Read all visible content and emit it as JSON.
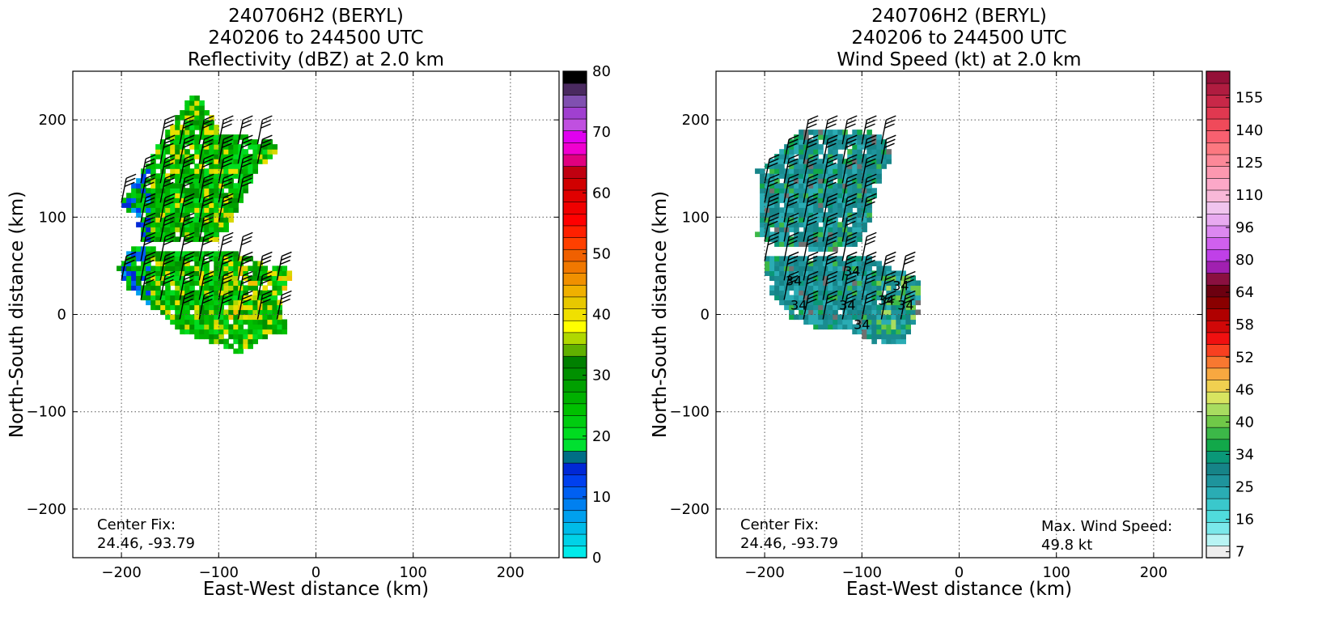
{
  "chart_data": [
    {
      "type": "heatmap",
      "title_lines": [
        "240706H2 (BERYL)",
        "240206 to 244500 UTC",
        "Reflectivity (dBZ) at 2.0 km"
      ],
      "xlabel": "East-West distance (km)",
      "ylabel": "North-South distance (km)",
      "xlim": [
        -250,
        250
      ],
      "ylim": [
        -250,
        250
      ],
      "xticks": [
        -200,
        -100,
        0,
        100,
        200
      ],
      "yticks": [
        -200,
        -100,
        0,
        100,
        200
      ],
      "grid": true,
      "annotation_lines": [
        "Center Fix:",
        "24.46, -93.79"
      ],
      "colorbar": {
        "range": [
          0,
          80
        ],
        "tick_labels": [
          "0",
          "10",
          "20",
          "30",
          "40",
          "50",
          "60",
          "70",
          "80"
        ],
        "colors": [
          "#00eaea",
          "#00d2e8",
          "#00bbe8",
          "#00a0ee",
          "#0080f0",
          "#0060f2",
          "#0040ee",
          "#0028d6",
          "#006e86",
          "#00e030",
          "#00dc20",
          "#00cc10",
          "#00c000",
          "#00b000",
          "#00a000",
          "#009000",
          "#008000",
          "#60b000",
          "#b0d800",
          "#ffff00",
          "#f0e000",
          "#e8c800",
          "#f0b000",
          "#f09000",
          "#f07800",
          "#f06000",
          "#ff4000",
          "#ff2000",
          "#ff0000",
          "#f00000",
          "#e00000",
          "#d00000",
          "#c00010",
          "#e00080",
          "#f000d0",
          "#e000f0",
          "#c050e0",
          "#a040d0",
          "#8050b0",
          "#4a2a60",
          "#000000"
        ]
      },
      "vector_symbol": "wind barbs"
    },
    {
      "type": "heatmap",
      "title_lines": [
        "240706H2 (BERYL)",
        "240206 to 244500 UTC",
        "Wind Speed (kt) at 2.0 km"
      ],
      "xlabel": "East-West distance (km)",
      "ylabel": "North-South distance (km)",
      "xlim": [
        -250,
        250
      ],
      "ylim": [
        -250,
        250
      ],
      "xticks": [
        -200,
        -100,
        0,
        100,
        200
      ],
      "yticks": [
        -200,
        -100,
        0,
        100,
        200
      ],
      "grid": true,
      "annotation_lines": [
        "Center Fix:",
        "24.46, -93.79"
      ],
      "max_wind_lines": [
        "Max. Wind Speed:",
        "49.8 kt"
      ],
      "contour_value": 34,
      "contour_labels": [
        "34",
        "34",
        "34",
        "34",
        "34",
        "34",
        "34",
        "34"
      ],
      "colorbar": {
        "tick_labels": [
          "7",
          "16",
          "25",
          "34",
          "40",
          "46",
          "52",
          "58",
          "64",
          "80",
          "96",
          "110",
          "125",
          "140",
          "155"
        ],
        "colors": [
          "#eeeeee",
          "#b8f4f4",
          "#7ae8ea",
          "#50dcdc",
          "#3ac8cc",
          "#2aacb4",
          "#1e949c",
          "#168488",
          "#0a9878",
          "#12a84a",
          "#3cb848",
          "#70c848",
          "#a8dc60",
          "#d8e460",
          "#f0d050",
          "#f8a840",
          "#f87830",
          "#f84020",
          "#f01010",
          "#d00808",
          "#b00000",
          "#8a0000",
          "#6c0010",
          "#8a1040",
          "#a020b0",
          "#c040e8",
          "#d060ee",
          "#dc88f0",
          "#e8aaf0",
          "#f0c4ee",
          "#f8b8d8",
          "#fca8c8",
          "#fc98b0",
          "#fc8898",
          "#fc7880",
          "#f86070",
          "#f04a5a",
          "#e03850",
          "#c82848",
          "#b01c40",
          "#941038"
        ]
      }
    }
  ]
}
